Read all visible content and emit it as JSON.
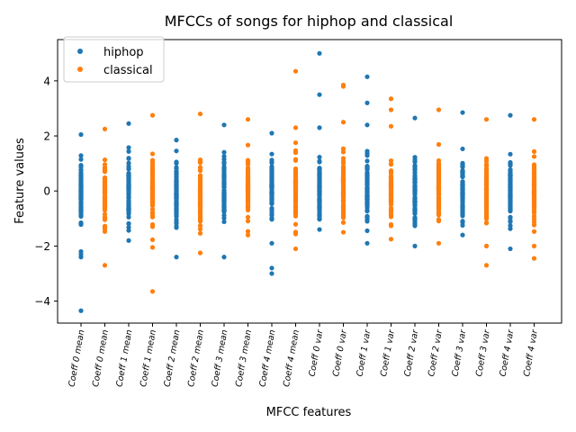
{
  "chart_data": {
    "type": "scatter",
    "title": "MFCCs of songs for hiphop and classical",
    "xlabel": "MFCC features",
    "ylabel": "Feature values",
    "ylim": [
      -4.8,
      5.5
    ],
    "yticks": [
      -4,
      -2,
      0,
      2,
      4
    ],
    "grid": false,
    "legend_position": "top-left",
    "categories": [
      "Coeff 0 mean",
      "Coeff 0 mean",
      "Coeff 1 mean",
      "Coeff 1 mean",
      "Coeff 2 mean",
      "Coeff 2 mean",
      "Coeff 3 mean",
      "Coeff 3 mean",
      "Coeff 4 mean",
      "Coeff 4 mean",
      "Coeff 0 var",
      "Coeff 0 var",
      "Coeff 1 var",
      "Coeff 1 var",
      "Coeff 2 var",
      "Coeff 2 var",
      "Coeff 3 var",
      "Coeff 3 var",
      "Coeff 4 var",
      "Coeff 4 var"
    ],
    "series": [
      {
        "name": "hiphop",
        "color": "#1f77b4",
        "x_positions": [
          0,
          2,
          4,
          6,
          8,
          10,
          12,
          14,
          16,
          18
        ],
        "ranges": [
          {
            "min": -2.4,
            "max": 2.05,
            "outliers": [
              -4.35,
              -2.2,
              -2.3
            ]
          },
          {
            "min": -1.8,
            "max": 2.45,
            "outliers": []
          },
          {
            "min": -2.4,
            "max": 1.85,
            "outliers": []
          },
          {
            "min": -2.4,
            "max": 2.4,
            "outliers": []
          },
          {
            "min": -1.9,
            "max": 2.1,
            "outliers": [
              -2.8,
              -3.0
            ]
          },
          {
            "min": -1.4,
            "max": 2.3,
            "outliers": [
              5.0,
              3.5
            ]
          },
          {
            "min": -1.9,
            "max": 2.4,
            "outliers": [
              4.15,
              3.2
            ]
          },
          {
            "min": -2.0,
            "max": 2.65,
            "outliers": []
          },
          {
            "min": -1.6,
            "max": 2.85,
            "outliers": []
          },
          {
            "min": -2.1,
            "max": 2.75,
            "outliers": []
          }
        ]
      },
      {
        "name": "classical",
        "color": "#ff7f0e",
        "x_positions": [
          1,
          3,
          5,
          7,
          9,
          11,
          13,
          15,
          17,
          19
        ],
        "ranges": [
          {
            "min": -2.7,
            "max": 2.25,
            "outliers": []
          },
          {
            "min": -2.05,
            "max": 2.75,
            "outliers": [
              -3.65
            ]
          },
          {
            "min": -2.25,
            "max": 2.8,
            "outliers": []
          },
          {
            "min": -1.6,
            "max": 2.6,
            "outliers": []
          },
          {
            "min": -2.1,
            "max": 2.3,
            "outliers": [
              4.35
            ]
          },
          {
            "min": -1.5,
            "max": 2.5,
            "outliers": [
              3.85,
              3.8
            ]
          },
          {
            "min": -1.75,
            "max": 2.35,
            "outliers": [
              3.35,
              2.95
            ]
          },
          {
            "min": -1.9,
            "max": 2.95,
            "outliers": []
          },
          {
            "min": -2.0,
            "max": 2.6,
            "outliers": [
              -2.7
            ]
          },
          {
            "min": -2.0,
            "max": 2.6,
            "outliers": [
              -2.45
            ]
          }
        ]
      }
    ]
  }
}
